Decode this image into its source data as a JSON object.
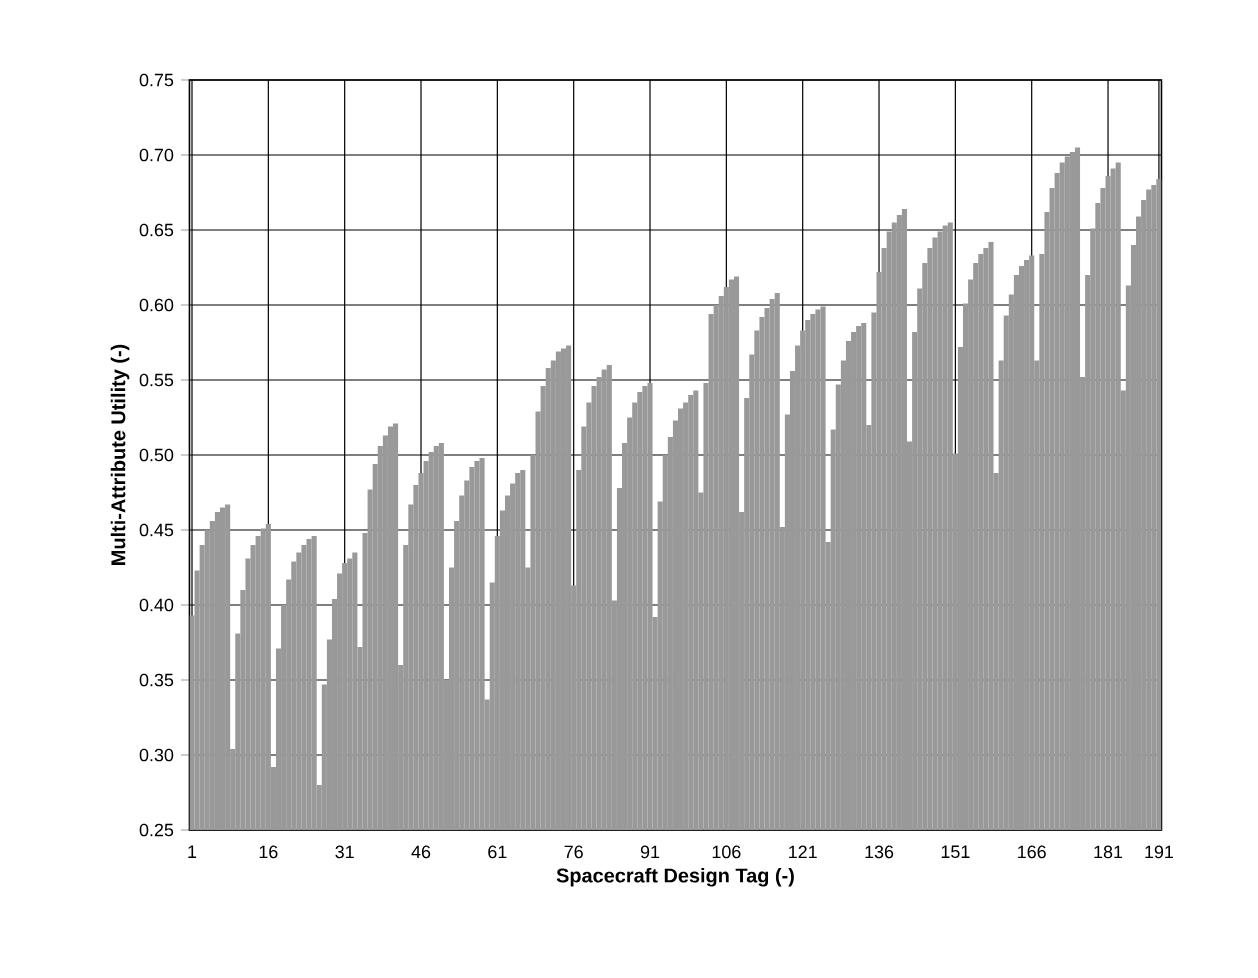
{
  "chart_data": {
    "type": "bar",
    "xlabel": "Spacecraft Design Tag (-)",
    "ylabel": "Multi-Attribute Utility (-)",
    "color": "#999999",
    "grid": true,
    "categories": [
      "1",
      null,
      null,
      null,
      null,
      null,
      null,
      null,
      null,
      null,
      null,
      null,
      null,
      null,
      null,
      "16",
      null,
      null,
      null,
      null,
      null,
      null,
      null,
      null,
      null,
      null,
      null,
      null,
      null,
      null,
      "31",
      null,
      null,
      null,
      null,
      null,
      null,
      null,
      null,
      null,
      null,
      null,
      null,
      null,
      null,
      "46",
      null,
      null,
      null,
      null,
      null,
      null,
      null,
      null,
      null,
      null,
      null,
      null,
      null,
      null,
      "61",
      null,
      null,
      null,
      null,
      null,
      null,
      null,
      null,
      null,
      null,
      null,
      null,
      null,
      null,
      "76",
      null,
      null,
      null,
      null,
      null,
      null,
      null,
      null,
      null,
      null,
      null,
      null,
      null,
      null,
      "91",
      null,
      null,
      null,
      null,
      null,
      null,
      null,
      null,
      null,
      null,
      null,
      null,
      null,
      null,
      "106",
      null,
      null,
      null,
      null,
      null,
      null,
      null,
      null,
      null,
      null,
      null,
      null,
      null,
      null,
      "121",
      null,
      null,
      null,
      null,
      null,
      null,
      null,
      null,
      null,
      null,
      null,
      null,
      null,
      null,
      "136",
      null,
      null,
      null,
      null,
      null,
      null,
      null,
      null,
      null,
      null,
      null,
      null,
      null,
      null,
      "151",
      null,
      null,
      null,
      null,
      null,
      null,
      null,
      null,
      null,
      null,
      null,
      null,
      null,
      null,
      "166",
      null,
      null,
      null,
      null,
      null,
      null,
      null,
      null,
      null,
      null,
      null,
      null,
      null,
      null,
      "181",
      null,
      null,
      null,
      null,
      null,
      null,
      null,
      null,
      null,
      "191"
    ],
    "values": [
      0.393,
      0.423,
      0.44,
      0.45,
      0.456,
      0.462,
      0.465,
      0.467,
      0.304,
      0.381,
      0.41,
      0.431,
      0.44,
      0.446,
      0.451,
      0.454,
      0.292,
      0.371,
      0.4,
      0.417,
      0.429,
      0.435,
      0.44,
      0.444,
      0.446,
      0.28,
      0.347,
      0.377,
      0.404,
      0.421,
      0.428,
      0.431,
      0.435,
      0.372,
      0.448,
      0.477,
      0.494,
      0.506,
      0.513,
      0.519,
      0.521,
      0.36,
      0.44,
      0.467,
      0.48,
      0.488,
      0.496,
      0.502,
      0.506,
      0.508,
      0.35,
      0.425,
      0.456,
      0.473,
      0.483,
      0.492,
      0.496,
      0.498,
      0.337,
      0.415,
      0.446,
      0.463,
      0.473,
      0.481,
      0.488,
      0.49,
      0.425,
      0.5,
      0.529,
      0.546,
      0.558,
      0.563,
      0.569,
      0.571,
      0.573,
      0.413,
      0.49,
      0.519,
      0.535,
      0.546,
      0.552,
      0.557,
      0.56,
      0.403,
      0.478,
      0.508,
      0.525,
      0.535,
      0.542,
      0.546,
      0.548,
      0.392,
      0.469,
      0.5,
      0.512,
      0.523,
      0.531,
      0.535,
      0.54,
      0.543,
      0.475,
      0.548,
      0.594,
      0.6,
      0.606,
      0.612,
      0.617,
      0.619,
      0.462,
      0.538,
      0.567,
      0.583,
      0.592,
      0.598,
      0.604,
      0.608,
      0.452,
      0.527,
      0.556,
      0.573,
      0.583,
      0.59,
      0.594,
      0.597,
      0.599,
      0.442,
      0.517,
      0.547,
      0.563,
      0.576,
      0.582,
      0.586,
      0.588,
      0.52,
      0.595,
      0.622,
      0.638,
      0.649,
      0.655,
      0.66,
      0.664,
      0.509,
      0.582,
      0.611,
      0.628,
      0.638,
      0.645,
      0.649,
      0.653,
      0.655,
      0.501,
      0.572,
      0.601,
      0.617,
      0.628,
      0.634,
      0.638,
      0.642,
      0.488,
      0.563,
      0.593,
      0.607,
      0.62,
      0.626,
      0.63,
      0.633,
      0.563,
      0.634,
      0.662,
      0.678,
      0.688,
      0.695,
      0.699,
      0.702,
      0.705,
      0.552,
      0.62,
      0.651,
      0.668,
      0.678,
      0.686,
      0.691,
      0.695,
      0.543,
      0.613,
      0.64,
      0.659,
      0.67,
      0.677,
      0.68,
      0.684
    ],
    "ylim": [
      0.25,
      0.75
    ],
    "yticks": [
      0.25,
      {
        "value": 0.3,
        "label": "0.30"
      },
      0.35,
      {
        "value": 0.4,
        "label": "0.40"
      },
      0.45,
      {
        "value": 0.5,
        "label": "0.50"
      },
      0.55,
      {
        "value": 0.6,
        "label": "0.60"
      },
      0.65,
      {
        "value": 0.7,
        "label": "0.70"
      },
      0.75
    ]
  }
}
